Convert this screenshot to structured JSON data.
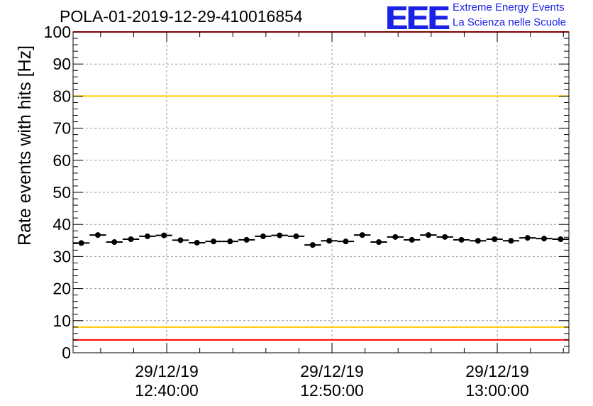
{
  "chart_data": {
    "type": "scatter",
    "title": "POLA-01-2019-12-29-410016854",
    "ylabel": "Rate events with hits [Hz]",
    "xlabel": "",
    "ylim": [
      0,
      100
    ],
    "yticks": [
      0,
      10,
      20,
      30,
      40,
      50,
      60,
      70,
      80,
      90,
      100
    ],
    "grid": true,
    "xlim": [
      "2019-12-29 12:34:20",
      "2019-12-29 13:04:20"
    ],
    "xticks": [
      {
        "date": "29/12/19",
        "time": "12:40:00",
        "t": "2019-12-29 12:40:00"
      },
      {
        "date": "29/12/19",
        "time": "12:50:00",
        "t": "2019-12-29 12:50:00"
      },
      {
        "date": "29/12/19",
        "time": "13:00:00",
        "t": "2019-12-29 13:00:00"
      }
    ],
    "reference_lines": [
      {
        "y": 100,
        "color": "#ff0000"
      },
      {
        "y": 80,
        "color": "#ffcc00"
      },
      {
        "y": 8,
        "color": "#ffcc00"
      },
      {
        "y": 4,
        "color": "#ff0000"
      }
    ],
    "series": [
      {
        "color": "#000000",
        "points": [
          {
            "x": "2019-12-29 12:34:50",
            "y": 34.2
          },
          {
            "x": "2019-12-29 12:35:50",
            "y": 36.7
          },
          {
            "x": "2019-12-29 12:36:50",
            "y": 34.5
          },
          {
            "x": "2019-12-29 12:37:50",
            "y": 35.4
          },
          {
            "x": "2019-12-29 12:38:50",
            "y": 36.3
          },
          {
            "x": "2019-12-29 12:39:50",
            "y": 36.6
          },
          {
            "x": "2019-12-29 12:40:50",
            "y": 35.1
          },
          {
            "x": "2019-12-29 12:41:50",
            "y": 34.3
          },
          {
            "x": "2019-12-29 12:42:50",
            "y": 34.7
          },
          {
            "x": "2019-12-29 12:43:50",
            "y": 34.7
          },
          {
            "x": "2019-12-29 12:44:50",
            "y": 35.2
          },
          {
            "x": "2019-12-29 12:45:50",
            "y": 36.3
          },
          {
            "x": "2019-12-29 12:46:50",
            "y": 36.6
          },
          {
            "x": "2019-12-29 12:47:50",
            "y": 36.3
          },
          {
            "x": "2019-12-29 12:48:50",
            "y": 33.6
          },
          {
            "x": "2019-12-29 12:49:50",
            "y": 34.9
          },
          {
            "x": "2019-12-29 12:50:50",
            "y": 34.7
          },
          {
            "x": "2019-12-29 12:51:50",
            "y": 36.7
          },
          {
            "x": "2019-12-29 12:52:50",
            "y": 34.5
          },
          {
            "x": "2019-12-29 12:53:50",
            "y": 36.1
          },
          {
            "x": "2019-12-29 12:54:50",
            "y": 35.2
          },
          {
            "x": "2019-12-29 12:55:50",
            "y": 36.7
          },
          {
            "x": "2019-12-29 12:56:50",
            "y": 36.1
          },
          {
            "x": "2019-12-29 12:57:50",
            "y": 35.2
          },
          {
            "x": "2019-12-29 12:58:50",
            "y": 34.9
          },
          {
            "x": "2019-12-29 12:59:50",
            "y": 35.4
          },
          {
            "x": "2019-12-29 13:00:50",
            "y": 34.9
          },
          {
            "x": "2019-12-29 13:01:50",
            "y": 35.8
          },
          {
            "x": "2019-12-29 13:02:50",
            "y": 35.6
          },
          {
            "x": "2019-12-29 13:03:50",
            "y": 35.4
          }
        ]
      }
    ]
  },
  "logo": {
    "mark": "EEE",
    "line1": "Extreme Energy Events",
    "line2": "La Scienza nelle Scuole"
  }
}
